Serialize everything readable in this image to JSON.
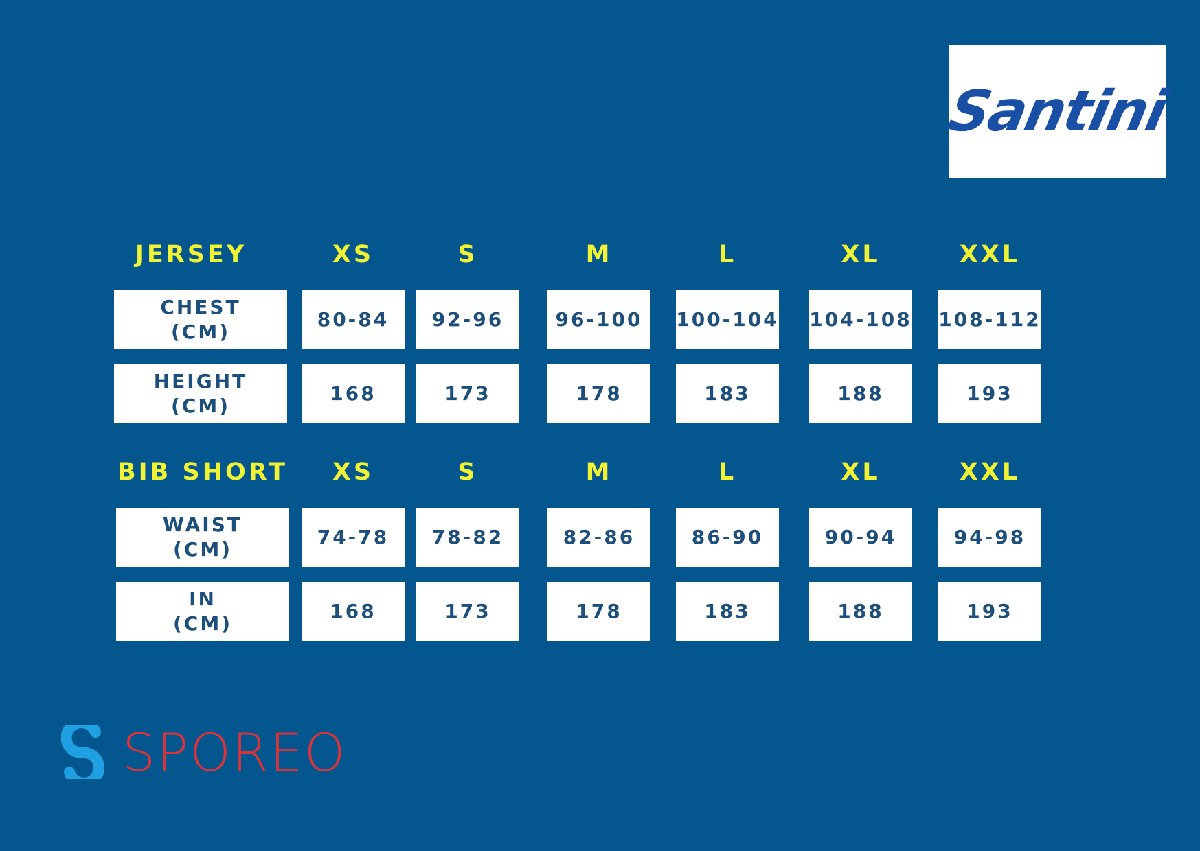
{
  "brand": {
    "logo": "Santini"
  },
  "tables": [
    {
      "title": "JERSEY",
      "sizes": [
        "XS",
        "S",
        "M",
        "L",
        "XL",
        "XXL"
      ],
      "rows": [
        {
          "label": "CHEST",
          "unit": "(CM)",
          "values": [
            "80-84",
            "92-96",
            "96-100",
            "100-104",
            "104-108",
            "108-112"
          ]
        },
        {
          "label": "HEIGHT",
          "unit": "(CM)",
          "values": [
            168,
            173,
            178,
            183,
            188,
            193
          ]
        }
      ]
    },
    {
      "title": "BIB SHORT",
      "sizes": [
        "XS",
        "S",
        "M",
        "L",
        "XL",
        "XXL"
      ],
      "rows": [
        {
          "label": "WAIST",
          "unit": "(CM)",
          "values": [
            "74-78",
            "78-82",
            "82-86",
            "86-90",
            "90-94",
            "94-98"
          ]
        },
        {
          "label": "IN",
          "unit": "(CM)",
          "values": [
            168,
            173,
            178,
            183,
            188,
            193
          ]
        }
      ]
    }
  ],
  "footer": {
    "logo": "SPOREO"
  }
}
